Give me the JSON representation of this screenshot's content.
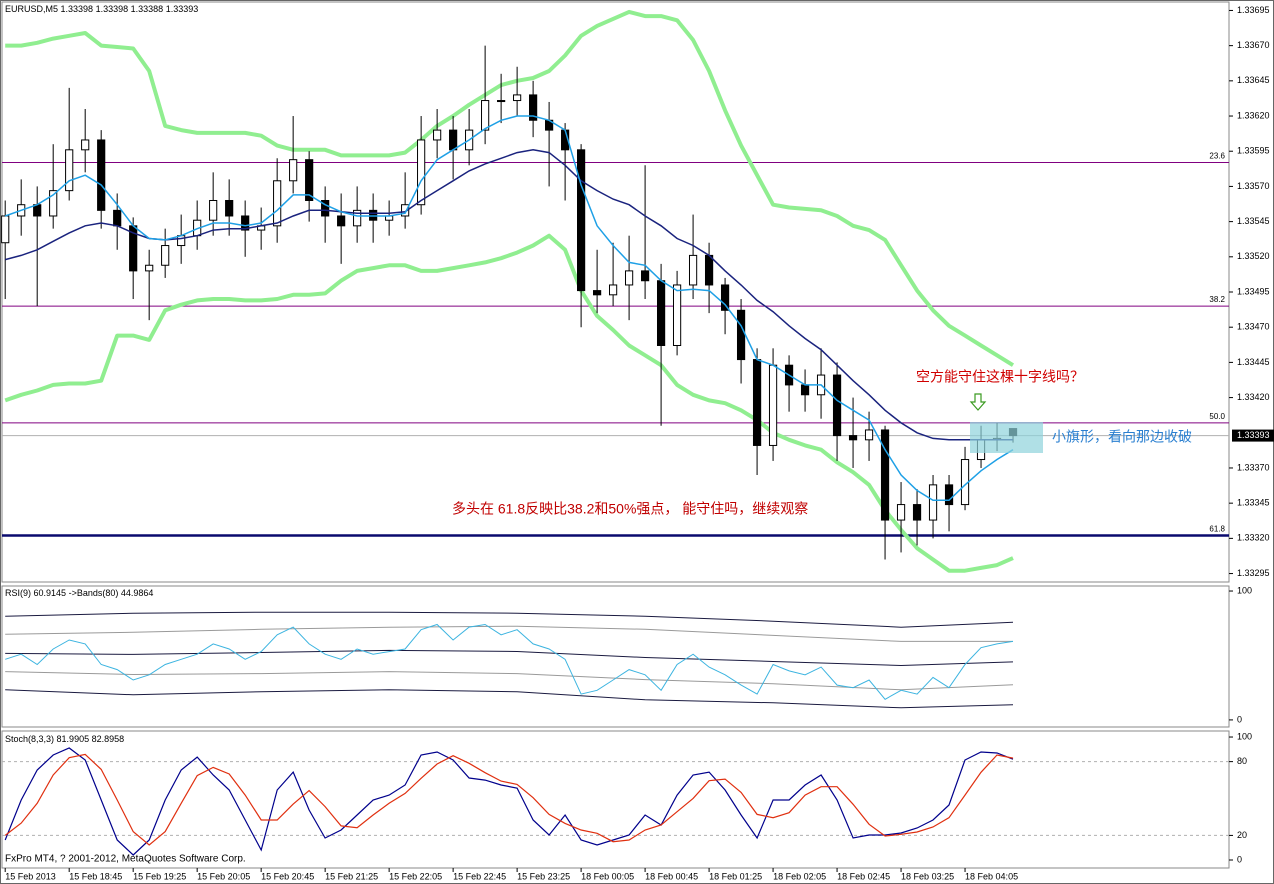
{
  "chart_data": [
    {
      "type": "candlestick",
      "title": "EURUSD,M5",
      "open": [
        1.3353,
        1.33549,
        1.33557,
        1.33549,
        1.33567,
        1.33596,
        1.33603,
        1.33553,
        1.33542,
        1.3351,
        1.33514,
        1.33528,
        1.33535,
        1.33546,
        1.3356,
        1.33549,
        1.33539,
        1.33542,
        1.33574,
        1.33589,
        1.3356,
        1.33549,
        1.33542,
        1.33553,
        1.33546,
        1.33549,
        1.33557,
        1.33603,
        1.3361,
        1.33596,
        1.3361,
        1.33631,
        1.33631,
        1.33635,
        1.33617,
        1.3361,
        1.33596,
        1.33496,
        1.33493,
        1.335,
        1.3351,
        1.33503,
        1.33457,
        1.335,
        1.33521,
        1.335,
        1.33482,
        1.33447,
        1.33386,
        1.33443,
        1.33429,
        1.33422,
        1.33436,
        1.33393,
        1.3339,
        1.33397,
        1.33333,
        1.33344,
        1.33333,
        1.33358,
        1.33344,
        1.33376,
        1.3339,
        1.33398
      ],
      "high": [
        1.3356,
        1.33575,
        1.3357,
        1.336,
        1.3364,
        1.33625,
        1.3361,
        1.33565,
        1.33548,
        1.33525,
        1.3354,
        1.3355,
        1.3356,
        1.3358,
        1.33575,
        1.3356,
        1.33555,
        1.3359,
        1.3362,
        1.33595,
        1.3357,
        1.33565,
        1.3357,
        1.33565,
        1.3356,
        1.3358,
        1.3362,
        1.33625,
        1.3362,
        1.33625,
        1.3367,
        1.3365,
        1.33655,
        1.33645,
        1.3363,
        1.33615,
        1.336,
        1.33525,
        1.3353,
        1.33535,
        1.33585,
        1.33515,
        1.3351,
        1.3355,
        1.3353,
        1.33505,
        1.3349,
        1.33455,
        1.33455,
        1.3345,
        1.3344,
        1.33455,
        1.33445,
        1.3342,
        1.3341,
        1.334,
        1.3336,
        1.33355,
        1.33365,
        1.33365,
        1.33385,
        1.334,
        1.33402,
        1.33398
      ],
      "low": [
        1.3349,
        1.33535,
        1.33485,
        1.3354,
        1.3356,
        1.3358,
        1.3354,
        1.33525,
        1.3349,
        1.33475,
        1.33505,
        1.33515,
        1.33525,
        1.33535,
        1.33535,
        1.3352,
        1.33525,
        1.3353,
        1.33565,
        1.33545,
        1.3353,
        1.33515,
        1.3353,
        1.3353,
        1.33535,
        1.3354,
        1.3355,
        1.3359,
        1.33575,
        1.33585,
        1.336,
        1.33615,
        1.3362,
        1.33605,
        1.3357,
        1.3356,
        1.3347,
        1.3348,
        1.33485,
        1.33475,
        1.3349,
        1.334,
        1.3345,
        1.3349,
        1.3348,
        1.33465,
        1.3343,
        1.33365,
        1.33375,
        1.3341,
        1.3341,
        1.33405,
        1.33375,
        1.3337,
        1.33375,
        1.33305,
        1.3331,
        1.33315,
        1.3332,
        1.33325,
        1.3334,
        1.3337,
        1.33382,
        1.33388
      ],
      "close": [
        1.33549,
        1.33557,
        1.33549,
        1.33567,
        1.33596,
        1.33603,
        1.33553,
        1.33542,
        1.3351,
        1.33514,
        1.33528,
        1.33535,
        1.33546,
        1.3356,
        1.33549,
        1.33539,
        1.33542,
        1.33574,
        1.33589,
        1.3356,
        1.33549,
        1.33542,
        1.33553,
        1.33546,
        1.33549,
        1.33557,
        1.33603,
        1.3361,
        1.33596,
        1.3361,
        1.33631,
        1.33631,
        1.33635,
        1.33617,
        1.3361,
        1.33596,
        1.33496,
        1.33493,
        1.335,
        1.3351,
        1.33503,
        1.33457,
        1.335,
        1.33521,
        1.335,
        1.33482,
        1.33447,
        1.33386,
        1.33443,
        1.33429,
        1.33422,
        1.33436,
        1.33393,
        1.3339,
        1.33397,
        1.33333,
        1.33344,
        1.33333,
        1.33358,
        1.33344,
        1.33376,
        1.3339,
        1.33391,
        1.33393
      ],
      "series": [
        {
          "color": "#90ee90",
          "values": [
            1.3367,
            1.3367,
            1.33672,
            1.33675,
            1.33677,
            1.33679,
            1.3367,
            1.33669,
            1.33668,
            1.33652,
            1.33613,
            1.3361,
            1.33608,
            1.33608,
            1.33608,
            1.33608,
            1.33606,
            1.33599,
            1.33596,
            1.33596,
            1.33596,
            1.33592,
            1.33592,
            1.33592,
            1.33592,
            1.33594,
            1.33603,
            1.33613,
            1.3362,
            1.33628,
            1.33635,
            1.33642,
            1.33645,
            1.33647,
            1.33652,
            1.33663,
            1.33677,
            1.33684,
            1.33689,
            1.33694,
            1.33691,
            1.33691,
            1.33688,
            1.33674,
            1.33652,
            1.33624,
            1.33599,
            1.33578,
            1.33557,
            1.33555,
            1.33554,
            1.33553,
            1.33549,
            1.33542,
            1.33539,
            1.33532,
            1.33514,
            1.33496,
            1.33482,
            1.33471,
            1.33464,
            1.33457,
            1.3345,
            1.33443
          ]
        },
        {
          "color": "#90ee90",
          "values": [
            1.33418,
            1.33422,
            1.33425,
            1.33429,
            1.3343,
            1.3343,
            1.33432,
            1.33464,
            1.33464,
            1.33461,
            1.33482,
            1.33486,
            1.33489,
            1.3349,
            1.3349,
            1.33489,
            1.33489,
            1.3349,
            1.33493,
            1.33493,
            1.33494,
            1.33503,
            1.3351,
            1.33512,
            1.33514,
            1.33514,
            1.3351,
            1.3351,
            1.33512,
            1.33514,
            1.33516,
            1.33519,
            1.33523,
            1.33528,
            1.33535,
            1.33525,
            1.33496,
            1.33478,
            1.33468,
            1.33457,
            1.3345,
            1.33443,
            1.33429,
            1.33422,
            1.33418,
            1.33416,
            1.33411,
            1.33404,
            1.33395,
            1.3339,
            1.33386,
            1.33383,
            1.33374,
            1.33367,
            1.33358,
            1.3334,
            1.33326,
            1.33313,
            1.33305,
            1.33297,
            1.33297,
            1.33299,
            1.33301,
            1.33306
          ]
        },
        {
          "color": "#1a237e",
          "values": [
            1.33518,
            1.33521,
            1.33525,
            1.33531,
            1.33537,
            1.33542,
            1.33544,
            1.33542,
            1.33537,
            1.33533,
            1.33532,
            1.33533,
            1.33535,
            1.33539,
            1.3354,
            1.3354,
            1.33542,
            1.33544,
            1.33549,
            1.33553,
            1.33553,
            1.33552,
            1.33551,
            1.33551,
            1.33551,
            1.33552,
            1.3356,
            1.33567,
            1.33574,
            1.33581,
            1.33586,
            1.3359,
            1.33594,
            1.33596,
            1.33594,
            1.33585,
            1.33574,
            1.33567,
            1.33561,
            1.33557,
            1.33549,
            1.33542,
            1.33533,
            1.33528,
            1.33521,
            1.3351,
            1.335,
            1.33489,
            1.33481,
            1.33471,
            1.33462,
            1.33454,
            1.33443,
            1.33432,
            1.33422,
            1.33411,
            1.33402,
            1.33395,
            1.33391,
            1.3339,
            1.3339,
            1.3339,
            1.3339,
            1.3339
          ]
        },
        {
          "color": "#1ea0e6",
          "values": [
            1.33549,
            1.33553,
            1.33557,
            1.33564,
            1.33574,
            1.33578,
            1.33571,
            1.33557,
            1.33542,
            1.33533,
            1.33532,
            1.33535,
            1.3354,
            1.33544,
            1.33544,
            1.33542,
            1.33544,
            1.33553,
            1.33564,
            1.33564,
            1.33557,
            1.33552,
            1.33549,
            1.33549,
            1.33549,
            1.33551,
            1.33574,
            1.33589,
            1.33596,
            1.33603,
            1.33611,
            1.33617,
            1.3362,
            1.3362,
            1.33617,
            1.3361,
            1.33571,
            1.33542,
            1.33528,
            1.33516,
            1.33514,
            1.33503,
            1.33496,
            1.33497,
            1.33496,
            1.33486,
            1.33471,
            1.33447,
            1.33443,
            1.33436,
            1.33429,
            1.33429,
            1.33418,
            1.33411,
            1.33404,
            1.33383,
            1.33365,
            1.33354,
            1.33347,
            1.33347,
            1.33358,
            1.33368,
            1.33376,
            1.33383
          ]
        }
      ],
      "fib_levels": [
        {
          "value": 1.33587,
          "label": "23.6",
          "color": "#800080"
        },
        {
          "value": 1.33485,
          "label": "38.2",
          "color": "#800080"
        },
        {
          "value": 1.33402,
          "label": "50.0",
          "color": "#800080"
        },
        {
          "value": 1.33322,
          "label": "61.8",
          "color": "#0a0a6e"
        }
      ],
      "annotations": [
        "空方能守住这棵十字线吗？",
        "小旗形，看向那边收破",
        "多头在 61.8反映比38.2和50%强点， 能守住吗，继续观察"
      ],
      "xlim": [
        -0.2,
        76.5
      ],
      "ylim": [
        1.33289,
        1.33701
      ],
      "yticks": [
        1.33695,
        {
          "value": 1.3367,
          "label": "1.33670"
        },
        1.33645,
        {
          "value": 1.3362,
          "label": "1.33620"
        },
        1.33595,
        {
          "value": 1.3357,
          "label": "1.33570"
        },
        1.33545,
        {
          "value": 1.3352,
          "label": "1.33520"
        },
        1.33495,
        {
          "value": 1.3347,
          "label": "1.33470"
        },
        1.33445,
        {
          "value": 1.3342,
          "label": "1.33420"
        },
        {
          "value": 1.3337,
          "label": "1.33370"
        },
        1.33345,
        {
          "value": 1.3332,
          "label": "1.33320"
        },
        1.33295
      ]
    },
    {
      "type": "line",
      "title": "RSI(9)",
      "bands_title": "->Bands(80)",
      "values": [
        47,
        51,
        43,
        55,
        62,
        59,
        43,
        39,
        31,
        35,
        43,
        47,
        51,
        59,
        55,
        47,
        53,
        66,
        72,
        59,
        51,
        47,
        55,
        51,
        53,
        55,
        70,
        74,
        62,
        72,
        74,
        66,
        70,
        59,
        55,
        47,
        20,
        23,
        31,
        39,
        35,
        23,
        43,
        51,
        41,
        35,
        27,
        20,
        43,
        38,
        35,
        41,
        27,
        25,
        31,
        16,
        23,
        20,
        33,
        25,
        43,
        56,
        59,
        60.9145
      ],
      "color": "#3cb4e0",
      "bands": [
        {
          "color": "#1a1a40",
          "x": [
            0,
            8,
            16,
            24,
            32,
            40,
            48,
            56,
            63
          ],
          "values": [
            80.5,
            82.8,
            83.6,
            83.6,
            82.8,
            80.5,
            76.6,
            71.9,
            75.8
          ]
        },
        {
          "color": "#9a9a9a",
          "x": [
            0,
            8,
            16,
            24,
            32,
            40,
            48,
            56,
            63
          ],
          "values": [
            66.4,
            68.0,
            70.3,
            71.9,
            72.7,
            70.3,
            65.6,
            60.9,
            60.9
          ]
        },
        {
          "color": "#1a1a40",
          "x": [
            0,
            8,
            16,
            24,
            32,
            40,
            48,
            56,
            63
          ],
          "values": [
            51.6,
            50.8,
            52.3,
            53.9,
            53.1,
            48.4,
            45.3,
            42.2,
            44.9864
          ]
        },
        {
          "color": "#9a9a9a",
          "x": [
            0,
            8,
            16,
            24,
            32,
            40,
            48,
            56,
            63
          ],
          "values": [
            37.5,
            35.2,
            35.9,
            37.5,
            35.9,
            31.3,
            28.1,
            23.4,
            27.3
          ]
        },
        {
          "color": "#1a1a40",
          "x": [
            0,
            8,
            16,
            24,
            32,
            40,
            48,
            56,
            63
          ],
          "values": [
            23.4,
            19.5,
            21.9,
            23.4,
            21.9,
            15.6,
            13.3,
            9.4,
            11.7
          ]
        }
      ],
      "xlim": [
        -0.2,
        76.5
      ],
      "ylim": [
        -5.5,
        103.9
      ],
      "yticks": [
        0,
        100
      ]
    },
    {
      "type": "line",
      "title": "Stoch(8,3,3)",
      "series": [
        {
          "color": "#00008c",
          "values": [
            16.3,
            48.8,
            73.2,
            85.4,
            91.1,
            81.3,
            48.8,
            16.3,
            4.1,
            16.3,
            48.8,
            73.2,
            83.7,
            69.1,
            56.9,
            32.5,
            8.1,
            56.9,
            71.5,
            40.7,
            17.9,
            24.4,
            36.6,
            48.8,
            52.8,
            61.0,
            85.4,
            87.8,
            81.3,
            66.7,
            65.0,
            61.0,
            58.5,
            32.5,
            20.3,
            36.6,
            16.3,
            12.2,
            16.3,
            20.3,
            36.6,
            28.5,
            52.8,
            69.1,
            71.5,
            56.9,
            36.6,
            17.9,
            48.8,
            48.8,
            61.0,
            69.1,
            48.8,
            17.9,
            20.3,
            20.3,
            22.0,
            26.0,
            32.5,
            44.7,
            81.3,
            87.8,
            87.0,
            81.9905
          ]
        },
        {
          "color": "#e03010",
          "values": [
            20,
            30,
            46.1,
            69.1,
            83.2,
            85.9,
            73.7,
            48.8,
            23.1,
            12.2,
            23.1,
            46.1,
            68.6,
            75.3,
            69.9,
            52.8,
            32.5,
            32.5,
            45.5,
            56.4,
            43.4,
            27.7,
            26.3,
            36.6,
            46.1,
            54.2,
            66.4,
            78.1,
            84.8,
            78.6,
            71.0,
            64.2,
            61.5,
            50.7,
            37.1,
            29.8,
            24.4,
            21.7,
            14.9,
            16.3,
            24.4,
            28.5,
            39.3,
            50.1,
            64.5,
            65.8,
            55.0,
            37.1,
            34.4,
            38.5,
            52.8,
            59.6,
            59.6,
            45.3,
            29.0,
            19.5,
            20.9,
            22.8,
            26.8,
            34.4,
            52.8,
            71.3,
            85.4,
            82.8958
          ]
        }
      ],
      "level_lines": [
        20,
        80
      ],
      "xlim": [
        -0.2,
        76.5
      ],
      "ylim": [
        -6.5,
        104.9
      ],
      "yticks": [
        0,
        20,
        80,
        100
      ],
      "xticks": [
        {
          "value": 0,
          "label": "15 Feb 2013"
        },
        {
          "value": 4,
          "label": "15 Feb 18:45"
        },
        {
          "value": 8,
          "label": "15 Feb 19:25"
        },
        {
          "value": 12,
          "label": "15 Feb 20:05"
        },
        {
          "value": 16,
          "label": "15 Feb 20:45"
        },
        {
          "value": 20,
          "label": "15 Feb 21:25"
        },
        {
          "value": 24,
          "label": "15 Feb 22:05"
        },
        {
          "value": 28,
          "label": "15 Feb 22:45"
        },
        {
          "value": 32,
          "label": "15 Feb 23:25"
        },
        {
          "value": 36,
          "label": "18 Feb 00:05"
        },
        {
          "value": 40,
          "label": "18 Feb 00:45"
        },
        {
          "value": 44,
          "label": "18 Feb 01:25"
        },
        {
          "value": 48,
          "label": "18 Feb 02:05"
        },
        {
          "value": 52,
          "label": "18 Feb 02:45"
        },
        {
          "value": 56,
          "label": "18 Feb 03:25"
        },
        {
          "value": 60,
          "label": "18 Feb 04:05"
        }
      ]
    }
  ],
  "copyright": "FxPro MT4, ? 2001-2012, MetaQuotes Software Corp."
}
